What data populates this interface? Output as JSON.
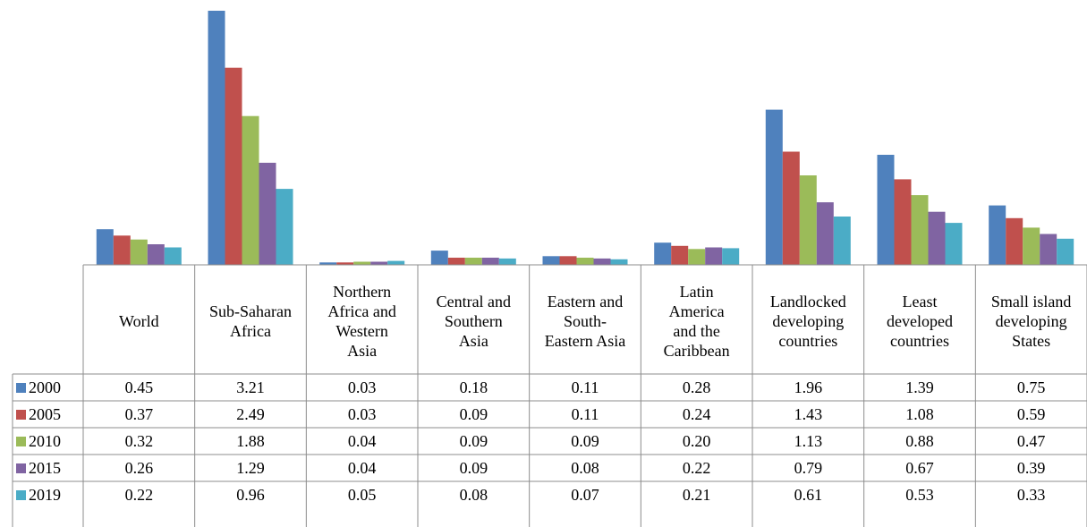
{
  "chart_data": {
    "type": "bar",
    "categories": [
      "World",
      "Sub-Saharan\nAfrica",
      "Northern\nAfrica and\nWestern\nAsia",
      "Central and\nSouthern\nAsia",
      "Eastern and\nSouth-\nEastern Asia",
      "Latin\nAmerica\nand the\nCaribbean",
      "Landlocked\ndeveloping\ncountries",
      "Least\ndeveloped\ncountries",
      "Small island\ndeveloping\nStates"
    ],
    "series": [
      {
        "name": "2000",
        "color": "#4F81BD",
        "values": [
          0.45,
          3.21,
          0.03,
          0.18,
          0.11,
          0.28,
          1.96,
          1.39,
          0.75
        ],
        "labels": [
          "0.45",
          "3.21",
          "0.03",
          "0.18",
          "0.11",
          "0.28",
          "1.96",
          "1.39",
          "0.75"
        ]
      },
      {
        "name": "2005",
        "color": "#C0504D",
        "values": [
          0.37,
          2.49,
          0.03,
          0.09,
          0.11,
          0.24,
          1.43,
          1.08,
          0.59
        ],
        "labels": [
          "0.37",
          "2.49",
          "0.03",
          "0.09",
          "0.11",
          "0.24",
          "1.43",
          "1.08",
          "0.59"
        ]
      },
      {
        "name": "2010",
        "color": "#9BBB59",
        "values": [
          0.32,
          1.88,
          0.04,
          0.09,
          0.09,
          0.2,
          1.13,
          0.88,
          0.47
        ],
        "labels": [
          "0.32",
          "1.88",
          "0.04",
          "0.09",
          "0.09",
          "0.20",
          "1.13",
          "0.88",
          "0.47"
        ]
      },
      {
        "name": "2015",
        "color": "#8064A2",
        "values": [
          0.26,
          1.29,
          0.04,
          0.09,
          0.08,
          0.22,
          0.79,
          0.67,
          0.39
        ],
        "labels": [
          "0.26",
          "1.29",
          "0.04",
          "0.09",
          "0.08",
          "0.22",
          "0.79",
          "0.67",
          "0.39"
        ]
      },
      {
        "name": "2019",
        "color": "#4BACC6",
        "values": [
          0.22,
          0.96,
          0.05,
          0.08,
          0.07,
          0.21,
          0.61,
          0.53,
          0.33
        ],
        "labels": [
          "0.22",
          "0.96",
          "0.05",
          "0.08",
          "0.07",
          "0.21",
          "0.61",
          "0.53",
          "0.33"
        ]
      }
    ],
    "ylim": [
      0,
      3.21
    ],
    "grid": false,
    "legend": "data-table",
    "data_table": true
  }
}
